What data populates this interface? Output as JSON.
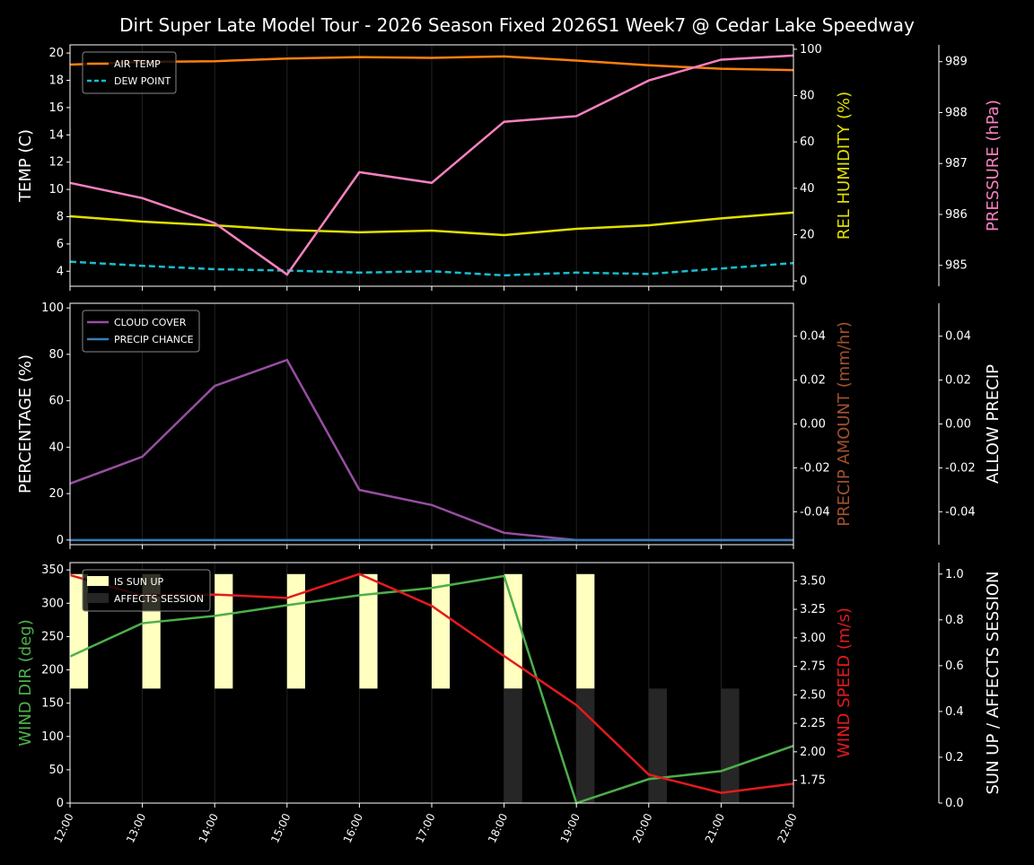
{
  "title": "Dirt Super Late Model Tour - 2026 Season Fixed 2026S1 Week7 @ Cedar Lake Speedway",
  "chart_data": [
    {
      "type": "line",
      "x": [
        "12:00",
        "13:00",
        "14:00",
        "15:00",
        "16:00",
        "17:00",
        "18:00",
        "19:00",
        "20:00",
        "21:00",
        "22:00"
      ],
      "ylabel": "TEMP (C)",
      "ylim": [
        2.9,
        20.6
      ],
      "yticks": [
        4,
        6,
        8,
        10,
        12,
        14,
        16,
        18,
        20
      ],
      "legend": "top-left",
      "series": [
        {
          "name": "AIR TEMP",
          "axis": "left",
          "color": "#ff7f0e",
          "style": "solid",
          "values": [
            19.15,
            19.35,
            19.4,
            19.6,
            19.7,
            19.65,
            19.75,
            19.45,
            19.1,
            18.85,
            18.75
          ]
        },
        {
          "name": "DEW POINT",
          "axis": "left",
          "color": "#17becf",
          "style": "dashed",
          "values": [
            4.7,
            4.4,
            4.15,
            4.05,
            3.9,
            4.0,
            3.7,
            3.9,
            3.8,
            4.2,
            4.6
          ]
        },
        {
          "axis": "right1",
          "color": "#e0e000",
          "style": "solid",
          "values": [
            27.9,
            25.6,
            24.0,
            22.0,
            21.0,
            21.7,
            19.8,
            22.5,
            24.0,
            27.0,
            29.5
          ]
        },
        {
          "axis": "right2",
          "color": "#f781bf",
          "style": "solid",
          "values": [
            986.62,
            986.32,
            985.83,
            984.82,
            986.83,
            986.62,
            987.82,
            987.93,
            988.63,
            989.04,
            989.12
          ]
        }
      ],
      "right1": {
        "label": "REL HUMIDITY (%)",
        "color": "#e0e000",
        "ylim": [
          -2.3,
          101.9
        ],
        "yticks": [
          0,
          20,
          40,
          60,
          80,
          100
        ]
      },
      "right2": {
        "label": "PRESSURE (hPa)",
        "color": "#f781bf",
        "ylim": [
          984.59,
          989.33
        ],
        "yticks": [
          985,
          986,
          987,
          988,
          989
        ]
      }
    },
    {
      "type": "line",
      "x": [
        "12:00",
        "13:00",
        "14:00",
        "15:00",
        "16:00",
        "17:00",
        "18:00",
        "19:00",
        "20:00",
        "21:00",
        "22:00"
      ],
      "ylabel": "PERCENTAGE (%)",
      "ylim": [
        -2,
        102
      ],
      "yticks": [
        0,
        20,
        40,
        60,
        80,
        100
      ],
      "legend": "top-left",
      "series": [
        {
          "name": "CLOUD COVER",
          "axis": "left",
          "color": "#984ea3",
          "style": "solid",
          "values": [
            24.3,
            35.9,
            66.4,
            77.6,
            21.6,
            15.1,
            3.1,
            0,
            0,
            0,
            0
          ]
        },
        {
          "name": "PRECIP CHANCE",
          "axis": "left",
          "color": "#377eb8",
          "style": "solid",
          "values": [
            0,
            0,
            0,
            0,
            0,
            0,
            0,
            0,
            0,
            0,
            0
          ]
        }
      ],
      "right1": {
        "label": "PRECIP AMOUNT (mm/hr)",
        "color": "#a0522d",
        "ylim": [
          -0.055,
          0.055
        ],
        "yticks": [
          "-0.04",
          "-0.02",
          "0.00",
          "0.02",
          "0.04"
        ]
      },
      "right2": {
        "label": "ALLOW PRECIP",
        "color": "#ffffff",
        "ylim": [
          -0.055,
          0.055
        ],
        "yticks": [
          "-0.04",
          "-0.02",
          "0.00",
          "0.02",
          "0.04"
        ]
      }
    },
    {
      "type": "line",
      "x": [
        "12:00",
        "13:00",
        "14:00",
        "15:00",
        "16:00",
        "17:00",
        "18:00",
        "19:00",
        "20:00",
        "21:00",
        "22:00"
      ],
      "ylabel": "WIND DIR (deg)",
      "ylim": [
        0,
        361
      ],
      "yticks": [
        0,
        50,
        100,
        150,
        200,
        250,
        300,
        350
      ],
      "legend": "top-left",
      "series": [
        {
          "axis": "left",
          "color": "#4daf4a",
          "style": "solid",
          "values": [
            220,
            270,
            281,
            297,
            312,
            323,
            341,
            0,
            36,
            48,
            86
          ]
        },
        {
          "axis": "right1",
          "color": "#e41a1c",
          "style": "solid",
          "values": [
            3.55,
            3.37,
            3.38,
            3.35,
            3.56,
            3.28,
            2.84,
            2.41,
            1.8,
            1.64,
            1.72
          ]
        }
      ],
      "bars": [
        {
          "name": "IS SUN UP",
          "color": "#ffffc0",
          "bottom": 0.5,
          "values": [
            1,
            1,
            1,
            1,
            1,
            1,
            1,
            1,
            0,
            0,
            0
          ]
        },
        {
          "name": "AFFECTS SESSION",
          "color": "#262626",
          "bottom": 0,
          "values": [
            0,
            0,
            0,
            0,
            0,
            0,
            1,
            1,
            1,
            1,
            0
          ]
        }
      ],
      "right1": {
        "label": "WIND SPEED (m/s)",
        "color": "#e41a1c",
        "ylim": [
          1.55,
          3.66
        ],
        "yticks": [
          "1.75",
          "2.00",
          "2.25",
          "2.50",
          "2.75",
          "3.00",
          "3.25",
          "3.50"
        ]
      },
      "right2": {
        "label": "SUN UP / AFFECTS SESSION",
        "color": "#ffffff",
        "ylim": [
          0,
          1.05
        ],
        "yticks": [
          "0.0",
          "0.2",
          "0.4",
          "0.6",
          "0.8",
          "1.0"
        ]
      }
    }
  ]
}
